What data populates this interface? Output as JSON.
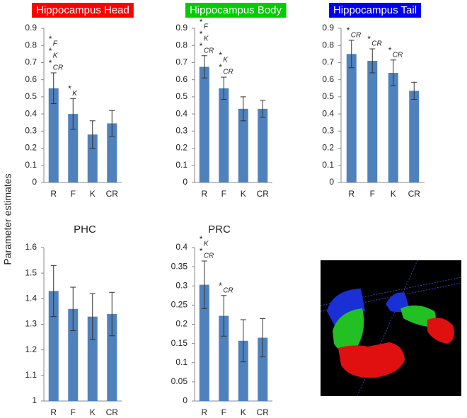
{
  "y_label": "Parameter estimates",
  "chart_data": [
    {
      "type": "bar",
      "title": "Hippocampus Head",
      "title_background": "#ff0000",
      "title_color": "#ffffff",
      "categories": [
        "R",
        "F",
        "K",
        "CR"
      ],
      "values": [
        0.55,
        0.4,
        0.28,
        0.345
      ],
      "errors": [
        0.09,
        0.09,
        0.08,
        0.075
      ],
      "color": "#4f81bd",
      "ylim": [
        0,
        0.9
      ],
      "yticks": [
        0,
        0.1,
        0.2,
        0.3,
        0.4,
        0.5,
        0.6,
        0.7,
        0.8,
        0.9
      ],
      "marker": "*",
      "significance": [
        [
          "F",
          "K",
          "CR"
        ],
        [
          "K"
        ],
        [],
        []
      ]
    },
    {
      "type": "bar",
      "title": "Hippocampus Body",
      "title_background": "#00cc00",
      "title_color": "#ffffff",
      "categories": [
        "R",
        "F",
        "K",
        "CR"
      ],
      "values": [
        0.675,
        0.55,
        0.43,
        0.43
      ],
      "errors": [
        0.065,
        0.065,
        0.07,
        0.05
      ],
      "color": "#4f81bd",
      "ylim": [
        0,
        0.9
      ],
      "yticks": [
        0,
        0.1,
        0.2,
        0.3,
        0.4,
        0.5,
        0.6,
        0.7,
        0.8,
        0.9
      ],
      "marker": "*",
      "significance": [
        [
          "F",
          "K",
          "CR"
        ],
        [
          "K",
          "CR"
        ],
        [],
        []
      ]
    },
    {
      "type": "bar",
      "title": "Hippocampus Tail",
      "title_background": "#0000ee",
      "title_color": "#ffffff",
      "categories": [
        "R",
        "F",
        "K",
        "CR"
      ],
      "values": [
        0.75,
        0.71,
        0.64,
        0.535
      ],
      "errors": [
        0.08,
        0.07,
        0.075,
        0.05
      ],
      "color": "#4f81bd",
      "ylim": [
        0,
        0.9
      ],
      "yticks": [
        0,
        0.1,
        0.2,
        0.3,
        0.4,
        0.5,
        0.6,
        0.7,
        0.8,
        0.9
      ],
      "marker": "*",
      "significance": [
        [
          "CR"
        ],
        [
          "CR"
        ],
        [
          "CR"
        ],
        []
      ]
    },
    {
      "type": "bar",
      "title": "PHC",
      "categories": [
        "R",
        "F",
        "K",
        "CR"
      ],
      "values": [
        1.43,
        1.36,
        1.33,
        1.34
      ],
      "errors": [
        0.1,
        0.085,
        0.09,
        0.085
      ],
      "color": "#4f81bd",
      "ylim": [
        1,
        1.6
      ],
      "yticks": [
        1,
        1.1,
        1.2,
        1.3,
        1.4,
        1.5,
        1.6
      ]
    },
    {
      "type": "bar",
      "title": "PRC",
      "categories": [
        "R",
        "F",
        "K",
        "CR"
      ],
      "values": [
        0.303,
        0.222,
        0.157,
        0.165
      ],
      "errors": [
        0.062,
        0.053,
        0.055,
        0.05
      ],
      "color": "#4f81bd",
      "ylim": [
        0,
        0.4
      ],
      "yticks": [
        0,
        0.05,
        0.1,
        0.15,
        0.2,
        0.25,
        0.3,
        0.35,
        0.4
      ],
      "marker": "*",
      "significance": [
        [
          "K",
          "CR"
        ],
        [
          "CR"
        ],
        [],
        []
      ]
    }
  ]
}
